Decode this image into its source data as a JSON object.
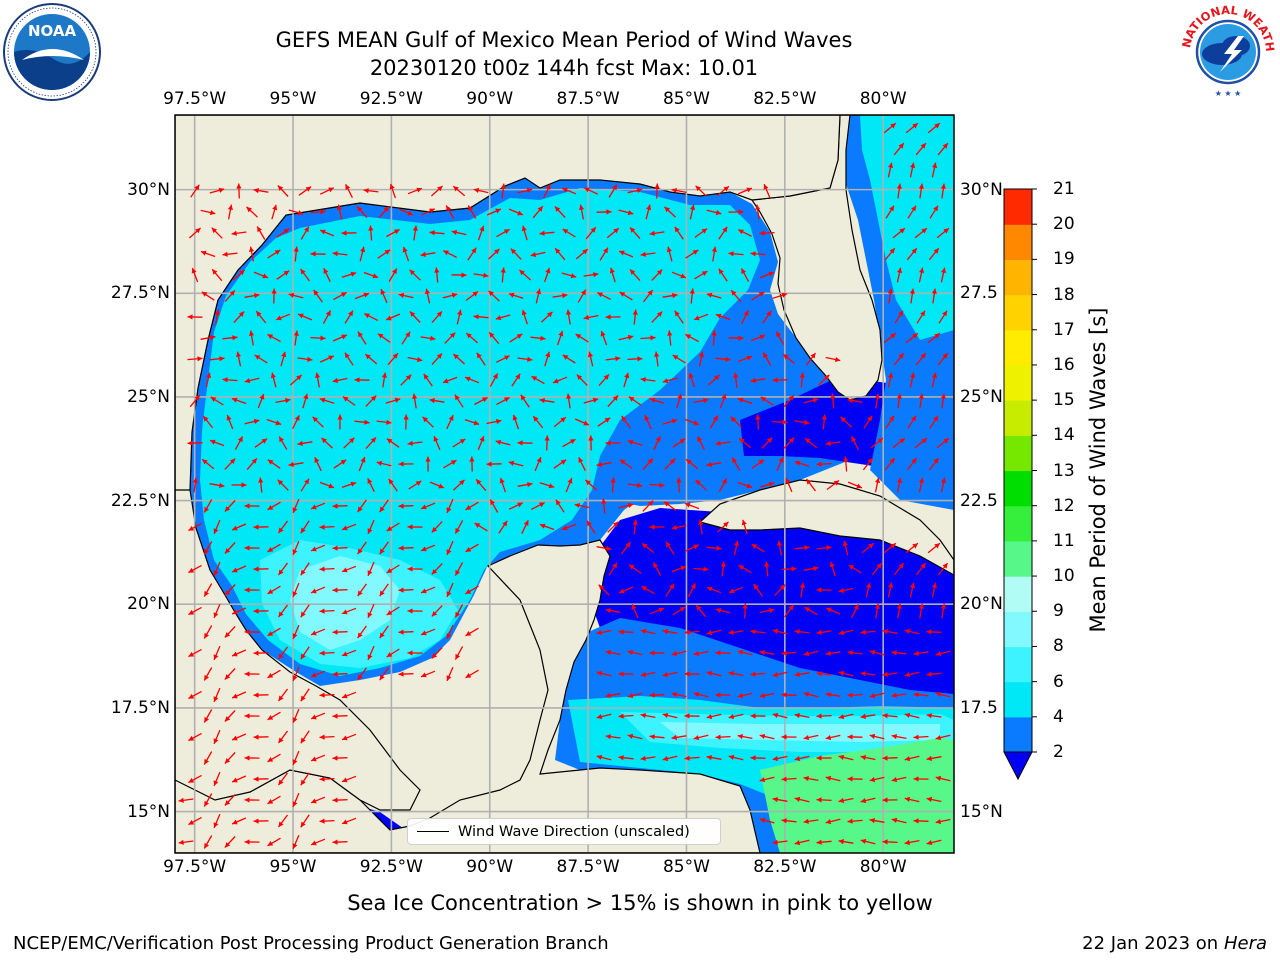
{
  "title_line1": "GEFS MEAN Gulf of Mexico Mean Period of Wind Waves",
  "title_line2": "20230120 t00z 144h fcst   Max: 10.01",
  "map": {
    "lon_ticks": [
      "97.5°W",
      "95°W",
      "92.5°W",
      "90°W",
      "87.5°W",
      "85°W",
      "82.5°W",
      "80°W"
    ],
    "lat_ticks": [
      "30°N",
      "27.5°N",
      "25°N",
      "22.5°N",
      "20°N",
      "17.5°N",
      "15°N"
    ],
    "lat_ticks_right": [
      "30°N",
      "27.5",
      "25°N",
      "22.5",
      "20°N",
      "17.5",
      "15°N"
    ],
    "lon_range": [
      -98,
      -78.2
    ],
    "lat_range": [
      14,
      31.8
    ],
    "land_color": "#eeeddb",
    "arrow_color": "#ff0000"
  },
  "colorbar": {
    "title": "Mean Period of Wind Waves [s]",
    "labels": [
      "2",
      "4",
      "6",
      "8",
      "9",
      "10",
      "11",
      "12",
      "13",
      "14",
      "15",
      "16",
      "17",
      "18",
      "19",
      "20",
      "21"
    ],
    "colors": [
      "#0a7bff",
      "#00e8f5",
      "#3df3ff",
      "#82f9ff",
      "#b1fcf5",
      "#58f78a",
      "#36ee3c",
      "#00de00",
      "#76e800",
      "#c8ec00",
      "#eef200",
      "#ffec00",
      "#ffd200",
      "#ffb400",
      "#ff8800",
      "#ff5a00",
      "#ff2a00",
      "#ff0000"
    ],
    "extend_color": "#0000f5"
  },
  "legend": {
    "label": "Wind Wave Direction (unscaled)"
  },
  "caption": "Sea Ice Concentration > 15% is shown in pink to yellow",
  "footer_left": "NCEP/EMC/Verification Post Processing Product Generation Branch",
  "footer_right_prefix": "22 Jan 2023 on ",
  "footer_right_host": "Hera",
  "logos": {
    "left": "NOAA",
    "right": "NATIONAL WEATHER SERVICE"
  }
}
